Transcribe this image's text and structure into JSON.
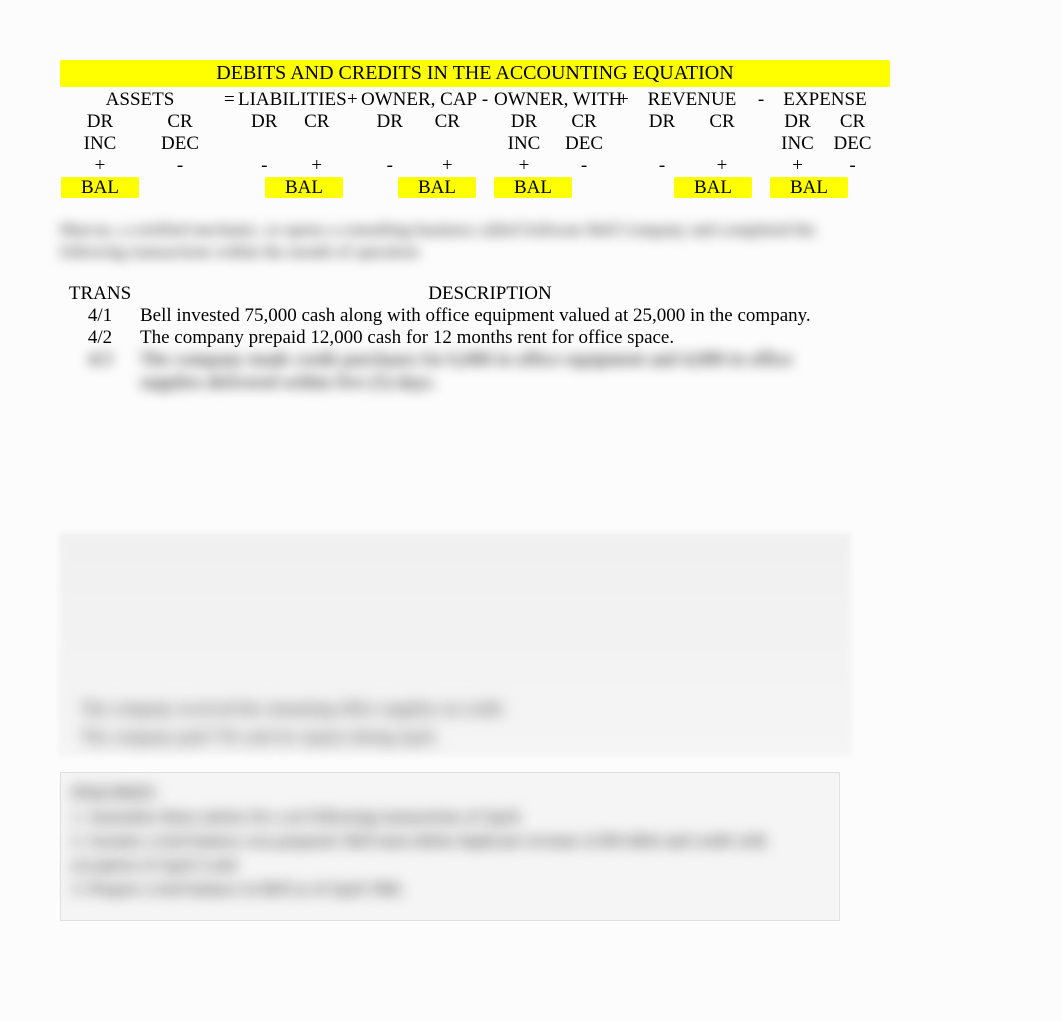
{
  "title": "DEBITS AND CREDITS IN THE ACCOUNTING EQUATION",
  "equation": {
    "sections": [
      {
        "name": "ASSETS",
        "width": 160,
        "cols": [
          {
            "drcr": "DR",
            "indec": "INC",
            "sign": "+",
            "bal": "BAL"
          },
          {
            "drcr": "CR",
            "indec": "DEC",
            "sign": "-",
            "bal": ""
          }
        ]
      },
      {
        "name": "LIABILITIES",
        "width": 105,
        "cols": [
          {
            "drcr": "DR",
            "indec": "",
            "sign": "-",
            "bal": ""
          },
          {
            "drcr": "CR",
            "indec": "",
            "sign": "+",
            "bal": "BAL"
          }
        ]
      },
      {
        "name": "OWNER, CAP",
        "width": 115,
        "cols": [
          {
            "drcr": "DR",
            "indec": "",
            "sign": "-",
            "bal": ""
          },
          {
            "drcr": "CR",
            "indec": "",
            "sign": "+",
            "bal": "BAL"
          }
        ]
      },
      {
        "name": "OWNER, WITH",
        "width": 120,
        "cols": [
          {
            "drcr": "DR",
            "indec": "INC",
            "sign": "+",
            "bal": "BAL"
          },
          {
            "drcr": "CR",
            "indec": "DEC",
            "sign": "-",
            "bal": ""
          }
        ]
      },
      {
        "name": "REVENUE",
        "width": 120,
        "cols": [
          {
            "drcr": "DR",
            "indec": "",
            "sign": "-",
            "bal": ""
          },
          {
            "drcr": "CR",
            "indec": "",
            "sign": "+",
            "bal": "BAL"
          }
        ]
      },
      {
        "name": "EXPENSE",
        "width": 110,
        "cols": [
          {
            "drcr": "DR",
            "indec": "INC",
            "sign": "+",
            "bal": "BAL"
          },
          {
            "drcr": "CR",
            "indec": "DEC",
            "sign": "-",
            "bal": ""
          }
        ]
      }
    ],
    "operators": [
      "=",
      "+",
      "-",
      "+",
      "-"
    ]
  },
  "blurred_intro": "Marcus, a certified mechanic, re-opens a consulting business called Software Bell Company and completed the following transactions within the month of operation",
  "trans_table": {
    "header": {
      "col1": "TRANS",
      "col2": "DESCRIPTION"
    },
    "rows": [
      {
        "date": "4/1",
        "desc": "Bell invested 75,000 cash along with office equipment valued at 25,000 in the company.",
        "blurred": false
      },
      {
        "date": "4/2",
        "desc": "The company prepaid 12,000 cash for 12 months rent for office space.",
        "blurred": false
      },
      {
        "date": "4/3",
        "desc": "The company made credit purchases for 6,000 in office equipment and 4,000 in office supplies delivered within five (5) days.",
        "blurred": true
      }
    ]
  },
  "lower_blurred": {
    "r1": "The company received the remaining office supplies on credit.",
    "r2": "The company paid 750 cash for repairs during April."
  },
  "block2": {
    "l1": "INQUIRIES",
    "l2": "1. Journalize these entries for a set following transactions of April.",
    "l3": "2. Assume a trial balance was prepared. Bell must delete duplicate revenue 4,500 debit and credit with exception of April 4 and",
    "l4": "3. Prepare a trial balance in Bell as of April 30th."
  },
  "colors": {
    "highlight": "#ffff00",
    "background": "#fcfcfc",
    "text": "#000000"
  }
}
